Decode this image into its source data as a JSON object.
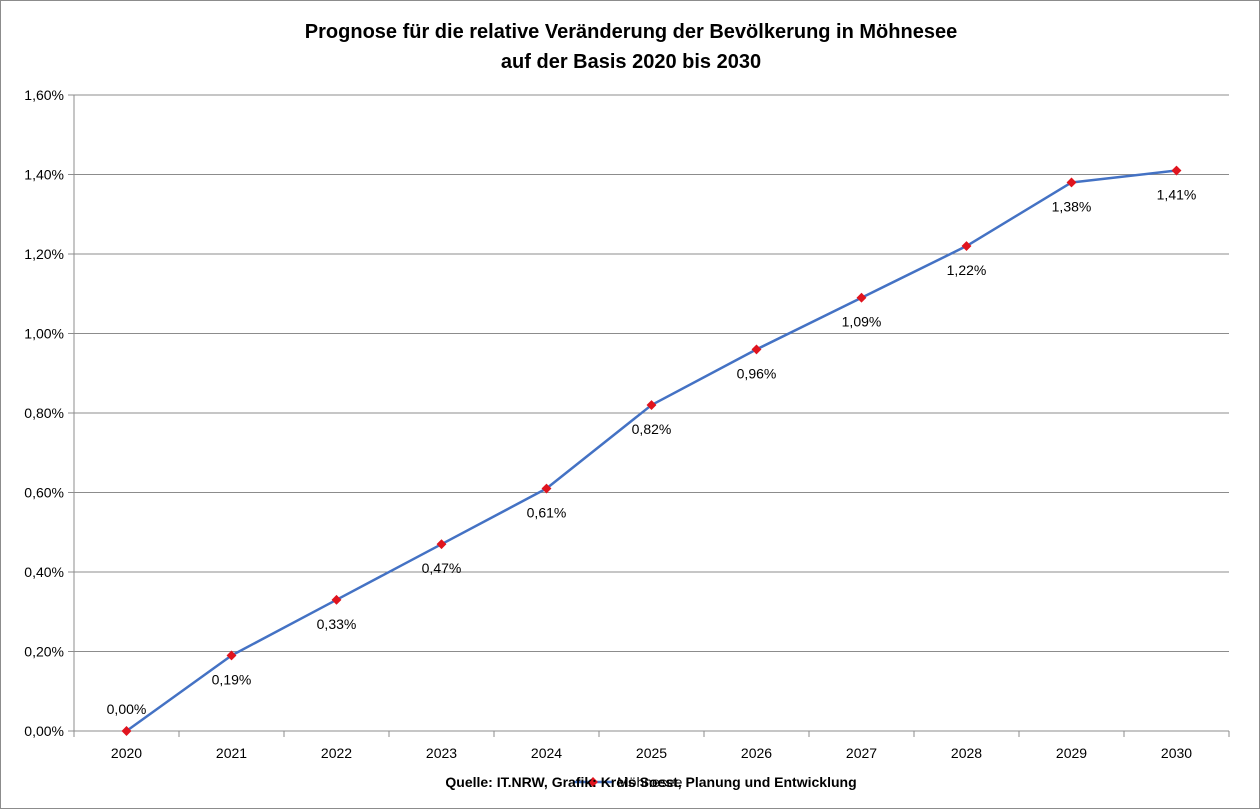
{
  "chart_data": {
    "type": "line",
    "title": "Prognose für die relative Veränderung der Bevölkerung in Möhnesee",
    "subtitle": "auf der Basis 2020 bis 2030",
    "xlabel": "",
    "ylabel": "",
    "categories": [
      "2020",
      "2021",
      "2022",
      "2023",
      "2024",
      "2025",
      "2026",
      "2027",
      "2028",
      "2029",
      "2030"
    ],
    "series": [
      {
        "name": "Möhnesee",
        "values": [
          0.0,
          0.19,
          0.33,
          0.47,
          0.61,
          0.82,
          0.96,
          1.09,
          1.22,
          1.38,
          1.41
        ],
        "labels": [
          "0,00%",
          "0,19%",
          "0,33%",
          "0,47%",
          "0,61%",
          "0,82%",
          "0,96%",
          "1,09%",
          "1,22%",
          "1,38%",
          "1,41%"
        ],
        "line_color": "#4472c4",
        "marker_color": "#e0141e"
      }
    ],
    "ylim": [
      0,
      1.6
    ],
    "yticks": [
      "0,00%",
      "0,20%",
      "0,40%",
      "0,60%",
      "0,80%",
      "1,00%",
      "1,20%",
      "1,40%",
      "1,60%"
    ],
    "grid": "horizontal",
    "legend_position": "bottom",
    "source_note": "Quelle: IT.NRW, Grafik: Kreis Soest, Planung und Entwicklung"
  }
}
